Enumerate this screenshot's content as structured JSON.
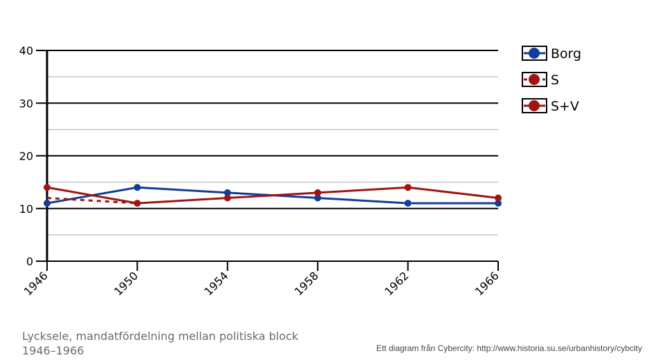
{
  "chart_data": {
    "type": "line",
    "categories": [
      "1946",
      "1950",
      "1954",
      "1958",
      "1962",
      "1966"
    ],
    "ylim": [
      0,
      40
    ],
    "y_ticks": [
      0,
      10,
      20,
      30,
      40
    ],
    "grid": true,
    "legend_position": "top-right",
    "series": [
      {
        "name": "Borg",
        "color": "#123c96",
        "style": "solid",
        "values": [
          11,
          14,
          13,
          12,
          11,
          11
        ]
      },
      {
        "name": "S",
        "color": "#a01414",
        "style": "dashed",
        "values": [
          12,
          11,
          null,
          null,
          null,
          null
        ]
      },
      {
        "name": "S+V",
        "color": "#a01414",
        "style": "solid",
        "values": [
          14,
          11,
          12,
          13,
          14,
          12
        ]
      }
    ]
  },
  "caption": "Lycksele, mandatfördelning mellan politiska block 1946–1966",
  "credit": "Ett diagram från Cybercity: http://www.historia.su.se/urbanhistory/cybcity"
}
